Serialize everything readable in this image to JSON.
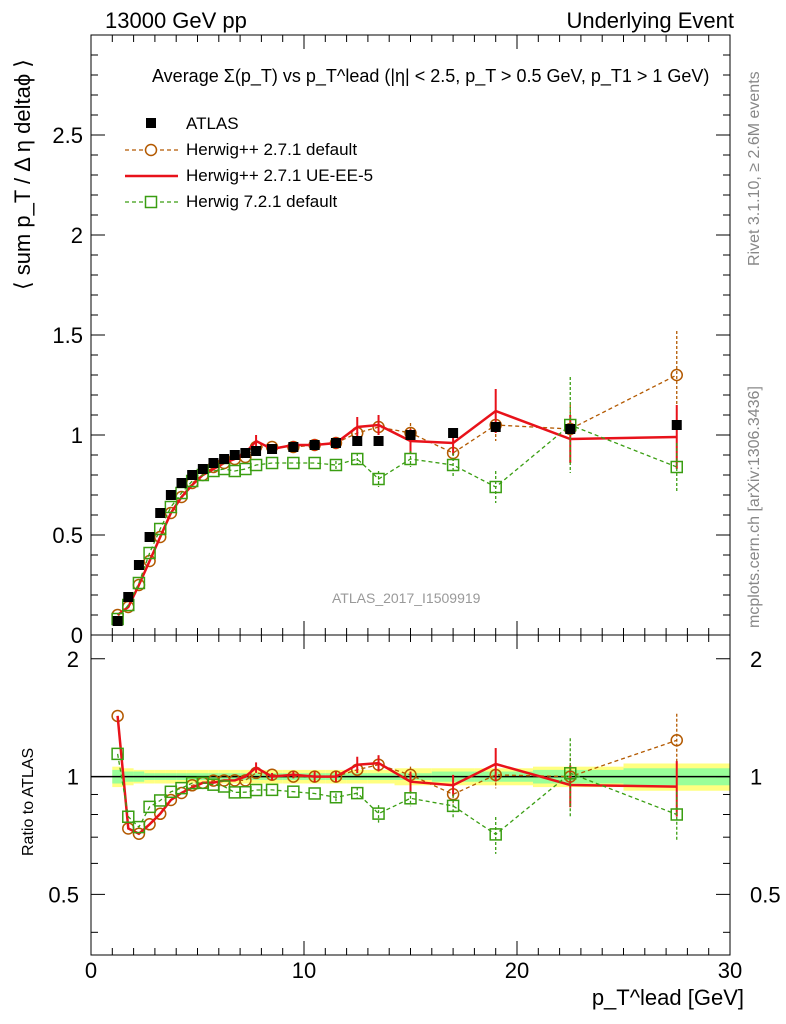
{
  "header": {
    "left": "13000 GeV pp",
    "right": "Underlying Event"
  },
  "side_texts": {
    "rivet": "Rivet 3.1.10, ≥ 2.6M events",
    "mcplots": "mcplots.cern.ch [arXiv:1306.3436]"
  },
  "watermark": "ATLAS_2017_I1509919",
  "chart_data": {
    "type": "scatter",
    "title": "Average Σ(p_T) vs p_T^lead (|η| < 2.5, p_T > 0.5 GeV, p_T1 > 1 GeV)",
    "xlabel": "p_T^lead [GeV]",
    "ylabel": "⟨ sum p_T / Δ η deltaϕ ⟩",
    "ratio_ylabel": "Ratio to ATLAS",
    "xlim": [
      0,
      30
    ],
    "ylim": [
      0,
      3.0
    ],
    "ratio_ylim": [
      0.35,
      2.3
    ],
    "x_ticks": [
      0,
      10,
      20,
      30
    ],
    "y_ticks": [
      0,
      0.5,
      1,
      1.5,
      2,
      2.5
    ],
    "ratio_ticks": [
      0.5,
      1,
      2
    ],
    "x": [
      1.25,
      1.75,
      2.25,
      2.75,
      3.25,
      3.75,
      4.25,
      4.75,
      5.25,
      5.75,
      6.25,
      6.75,
      7.25,
      7.75,
      8.5,
      9.5,
      10.5,
      11.5,
      12.5,
      13.5,
      15.0,
      17.0,
      19.0,
      22.5,
      27.5
    ],
    "series": [
      {
        "name": "ATLAS",
        "color": "#000000",
        "style": "data",
        "values": [
          0.07,
          0.19,
          0.35,
          0.49,
          0.61,
          0.7,
          0.76,
          0.8,
          0.83,
          0.86,
          0.88,
          0.9,
          0.91,
          0.92,
          0.93,
          0.94,
          0.95,
          0.96,
          0.97,
          0.97,
          1.0,
          1.01,
          1.04,
          1.03,
          1.05
        ],
        "ratio_band_inner": [
          0.04,
          0.03,
          0.03,
          0.02,
          0.02,
          0.02,
          0.02,
          0.02,
          0.02,
          0.02,
          0.02,
          0.02,
          0.02,
          0.02,
          0.02,
          0.02,
          0.02,
          0.02,
          0.02,
          0.02,
          0.02,
          0.03,
          0.03,
          0.04,
          0.05
        ],
        "ratio_band_outer": [
          0.06,
          0.05,
          0.04,
          0.04,
          0.04,
          0.04,
          0.04,
          0.04,
          0.04,
          0.04,
          0.04,
          0.04,
          0.04,
          0.04,
          0.04,
          0.04,
          0.04,
          0.04,
          0.04,
          0.04,
          0.05,
          0.05,
          0.05,
          0.06,
          0.08
        ]
      },
      {
        "name": "Herwig++ 2.7.1 default",
        "color": "#b35900",
        "style": "dashed-circle",
        "values": [
          0.1,
          0.14,
          0.25,
          0.37,
          0.49,
          0.61,
          0.69,
          0.76,
          0.8,
          0.84,
          0.86,
          0.88,
          0.89,
          0.94,
          0.94,
          0.94,
          0.95,
          0.96,
          1.01,
          1.04,
          1.01,
          0.91,
          1.05,
          1.03,
          1.3
        ],
        "errors": [
          0,
          0,
          0,
          0,
          0,
          0,
          0,
          0,
          0,
          0,
          0,
          0,
          0,
          0,
          0,
          0,
          0,
          0,
          0,
          0.04,
          0.05,
          0.05,
          0.08,
          0.12,
          0.22
        ]
      },
      {
        "name": "Herwig++ 2.7.1 UE-EE-5",
        "color": "#e8121a",
        "style": "solid",
        "values": [
          0.1,
          0.14,
          0.25,
          0.37,
          0.49,
          0.61,
          0.69,
          0.75,
          0.8,
          0.83,
          0.86,
          0.88,
          0.91,
          0.97,
          0.93,
          0.95,
          0.95,
          0.96,
          1.04,
          1.05,
          0.97,
          0.96,
          1.12,
          0.98,
          0.99
        ],
        "errors": [
          0,
          0,
          0,
          0,
          0,
          0,
          0,
          0,
          0,
          0,
          0,
          0,
          0,
          0.03,
          0.02,
          0.02,
          0.03,
          0.03,
          0.05,
          0.05,
          0.06,
          0.06,
          0.11,
          0.12,
          0.16
        ]
      },
      {
        "name": "Herwig 7.2.1 default",
        "color": "#3a9e12",
        "style": "dashed-square",
        "values": [
          0.08,
          0.15,
          0.26,
          0.41,
          0.53,
          0.64,
          0.71,
          0.77,
          0.8,
          0.82,
          0.83,
          0.82,
          0.83,
          0.85,
          0.86,
          0.86,
          0.86,
          0.85,
          0.88,
          0.78,
          0.88,
          0.85,
          0.74,
          1.05,
          0.84
        ],
        "errors": [
          0,
          0,
          0,
          0,
          0,
          0,
          0,
          0,
          0,
          0,
          0,
          0,
          0,
          0,
          0,
          0,
          0,
          0.02,
          0.03,
          0.04,
          0.04,
          0.06,
          0.08,
          0.24,
          0.12
        ]
      }
    ]
  }
}
